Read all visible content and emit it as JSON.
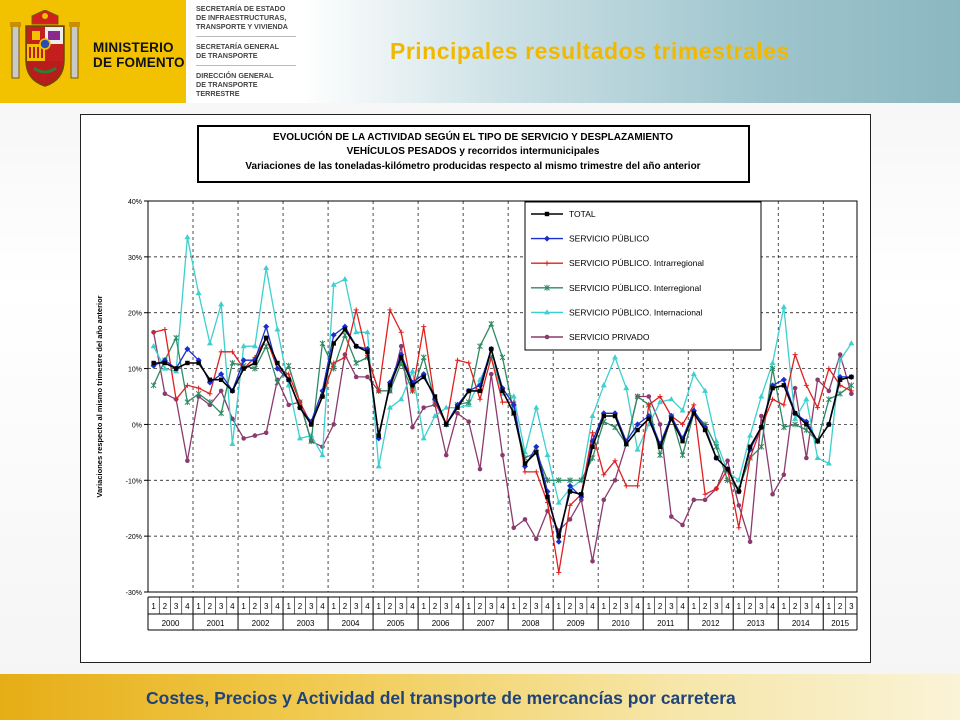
{
  "header": {
    "ministry_line1": "MINISTERIO",
    "ministry_line2": "DE FOMENTO",
    "dept1": "SECRETARÍA DE ESTADO\nDE INFRAESTRUCTURAS,\nTRANSPORTE Y VIVIENDA",
    "dept2": "SECRETARÍA GENERAL\nDE TRANSPORTE",
    "dept3": "DIRECCIÓN GENERAL\nDE TRANSPORTE\nTERRESTRE"
  },
  "page_title": "Principales resultados trimestrales",
  "footer_text": "Costes, Precios y Actividad del transporte de mercancías por carretera",
  "colors": {
    "logo_yellow": "#f2c200",
    "title_yellow": "#f2b800",
    "footer_text": "#20437a"
  },
  "chart_data": {
    "type": "line",
    "title_lines": [
      "EVOLUCIÓN DE LA ACTIVIDAD SEGÚN EL TIPO DE SERVICIO Y DESPLAZAMIENTO",
      "VEHÍCULOS PESADOS y recorridos intermunicipales",
      "Variaciones de las toneladas-kilómetro producidas respecto al mismo trimestre del año anterior"
    ],
    "ylabel": "Variaciones respecto al mismo trimestre del año anterior",
    "ylim": [
      -0.3,
      0.4
    ],
    "yticks": [
      -0.3,
      -0.2,
      -0.1,
      0.0,
      0.1,
      0.2,
      0.3,
      0.4
    ],
    "ytick_labels": [
      "-30%",
      "-20%",
      "-10%",
      "0%",
      "10%",
      "20%",
      "30%",
      "40%"
    ],
    "grid": true,
    "legend_position": "top-center",
    "quarter_labels": [
      "1",
      "2",
      "3",
      "4"
    ],
    "years": [
      {
        "label": "2000",
        "quarters": 4
      },
      {
        "label": "2001",
        "quarters": 4
      },
      {
        "label": "2002",
        "quarters": 4
      },
      {
        "label": "2003",
        "quarters": 4
      },
      {
        "label": "2004",
        "quarters": 4
      },
      {
        "label": "2005",
        "quarters": 4
      },
      {
        "label": "2006",
        "quarters": 4
      },
      {
        "label": "2007",
        "quarters": 4
      },
      {
        "label": "2008",
        "quarters": 4
      },
      {
        "label": "2009",
        "quarters": 4
      },
      {
        "label": "2010",
        "quarters": 4
      },
      {
        "label": "2011",
        "quarters": 4
      },
      {
        "label": "2012",
        "quarters": 4
      },
      {
        "label": "2013",
        "quarters": 4
      },
      {
        "label": "2014",
        "quarters": 4
      },
      {
        "label": "2015",
        "quarters": 3
      }
    ],
    "series": [
      {
        "name": "TOTAL",
        "color": "#000000",
        "marker": "square",
        "values": [
          0.11,
          0.11,
          0.1,
          0.11,
          0.11,
          0.08,
          0.08,
          0.06,
          0.1,
          0.11,
          0.155,
          0.11,
          0.08,
          0.03,
          0.0,
          0.05,
          0.145,
          0.17,
          0.14,
          0.13,
          -0.02,
          0.07,
          0.12,
          0.07,
          0.085,
          0.05,
          0.0,
          0.03,
          0.06,
          0.06,
          0.135,
          0.06,
          0.02,
          -0.07,
          -0.05,
          -0.13,
          -0.2,
          -0.12,
          -0.125,
          -0.04,
          0.015,
          0.015,
          -0.035,
          -0.01,
          0.01,
          -0.04,
          0.01,
          -0.03,
          0.02,
          -0.01,
          -0.06,
          -0.08,
          -0.12,
          -0.04,
          -0.005,
          0.065,
          0.07,
          0.02,
          0.0,
          -0.03,
          0.0,
          0.08,
          0.085
        ]
      },
      {
        "name": "SERVICIO PÚBLICO",
        "color": "#1a2ecc",
        "marker": "diamond",
        "values": [
          0.105,
          0.115,
          0.1,
          0.135,
          0.115,
          0.075,
          0.09,
          0.06,
          0.115,
          0.115,
          0.175,
          0.1,
          0.08,
          0.03,
          0.005,
          0.06,
          0.16,
          0.175,
          0.14,
          0.135,
          -0.025,
          0.075,
          0.125,
          0.075,
          0.09,
          0.045,
          0.0,
          0.035,
          0.06,
          0.07,
          0.135,
          0.065,
          0.035,
          -0.075,
          -0.04,
          -0.12,
          -0.21,
          -0.11,
          -0.13,
          -0.03,
          0.02,
          0.02,
          -0.03,
          0.0,
          0.015,
          -0.035,
          0.015,
          -0.025,
          0.025,
          -0.005,
          -0.06,
          -0.08,
          -0.12,
          -0.045,
          -0.005,
          0.07,
          0.08,
          0.02,
          0.005,
          -0.03,
          0.0,
          0.085,
          0.085
        ]
      },
      {
        "name": "SERVICIO PÚBLICO. Intrarregional",
        "color": "#e02020",
        "marker": "dash",
        "values": [
          0.165,
          0.17,
          0.045,
          0.07,
          0.065,
          0.055,
          0.13,
          0.13,
          0.1,
          0.12,
          0.155,
          0.1,
          0.09,
          0.04,
          0.0,
          0.05,
          0.11,
          0.12,
          0.205,
          0.12,
          0.06,
          0.205,
          0.165,
          0.06,
          0.175,
          0.04,
          0.0,
          0.115,
          0.11,
          0.045,
          0.12,
          0.04,
          0.04,
          -0.085,
          -0.085,
          -0.14,
          -0.265,
          -0.145,
          -0.125,
          -0.015,
          -0.09,
          -0.065,
          -0.11,
          -0.11,
          0.035,
          0.05,
          0.015,
          0.0,
          0.035,
          -0.125,
          -0.115,
          -0.08,
          -0.185,
          -0.06,
          -0.005,
          0.045,
          0.035,
          0.125,
          0.07,
          0.03,
          0.1,
          0.07,
          0.06
        ]
      },
      {
        "name": "SERVICIO PÚBLICO. Interregional",
        "color": "#2e8a63",
        "marker": "star",
        "values": [
          0.07,
          0.115,
          0.155,
          0.04,
          0.055,
          0.04,
          0.02,
          0.11,
          0.105,
          0.1,
          0.14,
          0.075,
          0.105,
          0.04,
          -0.03,
          0.145,
          0.1,
          0.16,
          0.11,
          0.12,
          0.06,
          0.06,
          0.11,
          0.06,
          0.12,
          0.04,
          0.0,
          0.035,
          0.04,
          0.14,
          0.18,
          0.12,
          0.02,
          -0.06,
          -0.05,
          -0.1,
          -0.1,
          -0.1,
          -0.1,
          -0.06,
          0.005,
          -0.005,
          -0.035,
          0.05,
          0.035,
          -0.055,
          0.015,
          -0.055,
          0.02,
          0.0,
          -0.04,
          -0.1,
          -0.115,
          -0.06,
          -0.04,
          0.1,
          -0.005,
          0.0,
          -0.01,
          -0.03,
          0.045,
          0.055,
          0.07
        ]
      },
      {
        "name": "SERVICIO PÚBLICO. Internacional",
        "color": "#3ecfcf",
        "marker": "triangle",
        "values": [
          0.14,
          0.1,
          0.095,
          0.335,
          0.235,
          0.145,
          0.215,
          -0.035,
          0.14,
          0.14,
          0.28,
          0.17,
          0.07,
          -0.025,
          -0.02,
          -0.055,
          0.25,
          0.26,
          0.165,
          0.165,
          -0.075,
          0.03,
          0.045,
          0.095,
          -0.025,
          0.015,
          0.03,
          0.03,
          0.035,
          0.08,
          0.12,
          0.055,
          0.05,
          -0.05,
          0.03,
          -0.055,
          -0.14,
          -0.115,
          -0.1,
          0.015,
          0.07,
          0.12,
          0.065,
          -0.045,
          0.0,
          0.04,
          0.045,
          0.025,
          0.09,
          0.06,
          -0.03,
          -0.085,
          -0.1,
          -0.02,
          0.05,
          0.11,
          0.21,
          0.01,
          0.045,
          -0.06,
          -0.07,
          0.115,
          0.145
        ]
      },
      {
        "name": "SERVICIO PRIVADO",
        "color": "#8b3a6e",
        "marker": "circle",
        "values": [
          0.165,
          0.055,
          0.045,
          -0.065,
          0.05,
          0.035,
          0.06,
          0.01,
          -0.025,
          -0.02,
          -0.015,
          0.08,
          0.035,
          0.04,
          -0.03,
          -0.04,
          0.0,
          0.125,
          0.085,
          0.085,
          0.06,
          0.06,
          0.14,
          -0.005,
          0.03,
          0.035,
          -0.055,
          0.02,
          0.005,
          -0.08,
          0.09,
          -0.055,
          -0.185,
          -0.17,
          -0.205,
          -0.155,
          -0.19,
          -0.17,
          -0.135,
          -0.245,
          -0.135,
          -0.1,
          -0.035,
          0.05,
          0.05,
          0.0,
          -0.165,
          -0.18,
          -0.135,
          -0.135,
          -0.115,
          -0.065,
          -0.145,
          -0.21,
          0.015,
          -0.125,
          -0.09,
          0.065,
          -0.06,
          0.08,
          0.06,
          0.125,
          0.055
        ]
      }
    ]
  }
}
